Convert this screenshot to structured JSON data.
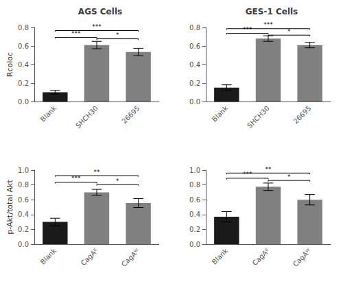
{
  "chart_data": [
    {
      "type": "bar",
      "title": "AGS Cells",
      "ylabel": "Rcoloc",
      "categories": [
        "Blank",
        "SHCH30",
        "26695"
      ],
      "values": [
        0.1,
        0.61,
        0.535
      ],
      "errors": [
        0.02,
        0.04,
        0.04
      ],
      "colors": [
        "#1a1a1a",
        "#808080",
        "#808080"
      ],
      "ylim": [
        0.0,
        0.8
      ],
      "yticks": [
        {
          "value": 0.0,
          "label": "0.0"
        },
        0.2,
        0.4,
        0.6,
        0.8
      ],
      "grid": false,
      "annotations": [
        {
          "text": "***",
          "from": "Blank",
          "to": "SHCH30",
          "y": 0.68
        },
        {
          "text": "***",
          "from": "Blank",
          "to": "26695",
          "y": 0.755
        },
        {
          "text": "*",
          "from": "SHCH30",
          "to": "26695",
          "y": 0.665
        }
      ]
    },
    {
      "type": "bar",
      "title": "GES-1 Cells",
      "categories": [
        "Blank",
        "SHCH30",
        "26695"
      ],
      "values": [
        0.15,
        0.68,
        0.61
      ],
      "errors": [
        0.03,
        0.03,
        0.03
      ],
      "colors": [
        "#1a1a1a",
        "#808080",
        "#808080"
      ],
      "ylim": [
        0.0,
        0.8
      ],
      "yticks": [
        {
          "value": 0.0,
          "label": "0.0"
        },
        0.2,
        0.4,
        0.6,
        0.8
      ],
      "grid": false,
      "annotations": [
        {
          "text": "***",
          "from": "Blank",
          "to": "SHCH30",
          "y": 0.725
        },
        {
          "text": "***",
          "from": "Blank",
          "to": "26695",
          "y": 0.775
        },
        {
          "text": "*",
          "from": "SHCH30",
          "to": "26695",
          "y": 0.705
        }
      ]
    },
    {
      "type": "bar",
      "ylabel": "p-Akt/total Akt",
      "categories": [
        "Blank",
        "CagAᴱ",
        "CagAᵂ"
      ],
      "values": [
        0.3,
        0.7,
        0.555
      ],
      "errors": [
        0.05,
        0.04,
        0.06
      ],
      "colors": [
        "#1a1a1a",
        "#808080",
        "#808080"
      ],
      "ylim": [
        0.0,
        1.0
      ],
      "yticks": [
        {
          "value": 0.0,
          "label": "0.0"
        },
        0.2,
        0.4,
        0.6,
        0.8,
        {
          "value": 1.0,
          "label": "1.0"
        }
      ],
      "grid": false,
      "annotations": [
        {
          "text": "***",
          "from": "Blank",
          "to": "CagAᴱ",
          "y": 0.82
        },
        {
          "text": "**",
          "from": "Blank",
          "to": "CagAᵂ",
          "y": 0.91
        },
        {
          "text": "*",
          "from": "CagAᴱ",
          "to": "CagAᵂ",
          "y": 0.79
        }
      ]
    },
    {
      "type": "bar",
      "categories": [
        "Blank",
        "CagAᴱ",
        "CagAᵂ"
      ],
      "values": [
        0.37,
        0.775,
        0.6
      ],
      "errors": [
        0.07,
        0.05,
        0.07
      ],
      "colors": [
        "#1a1a1a",
        "#808080",
        "#808080"
      ],
      "ylim": [
        0.0,
        1.0
      ],
      "yticks": [
        {
          "value": 0.0,
          "label": "0.0"
        },
        0.2,
        0.4,
        0.6,
        0.8,
        {
          "value": 1.0,
          "label": "1.0"
        }
      ],
      "grid": false,
      "annotations": [
        {
          "text": "***",
          "from": "Blank",
          "to": "CagAᴱ",
          "y": 0.875
        },
        {
          "text": "**",
          "from": "Blank",
          "to": "CagAᵂ",
          "y": 0.945
        },
        {
          "text": "*",
          "from": "CagAᴱ",
          "to": "CagAᵂ",
          "y": 0.845
        }
      ]
    }
  ]
}
